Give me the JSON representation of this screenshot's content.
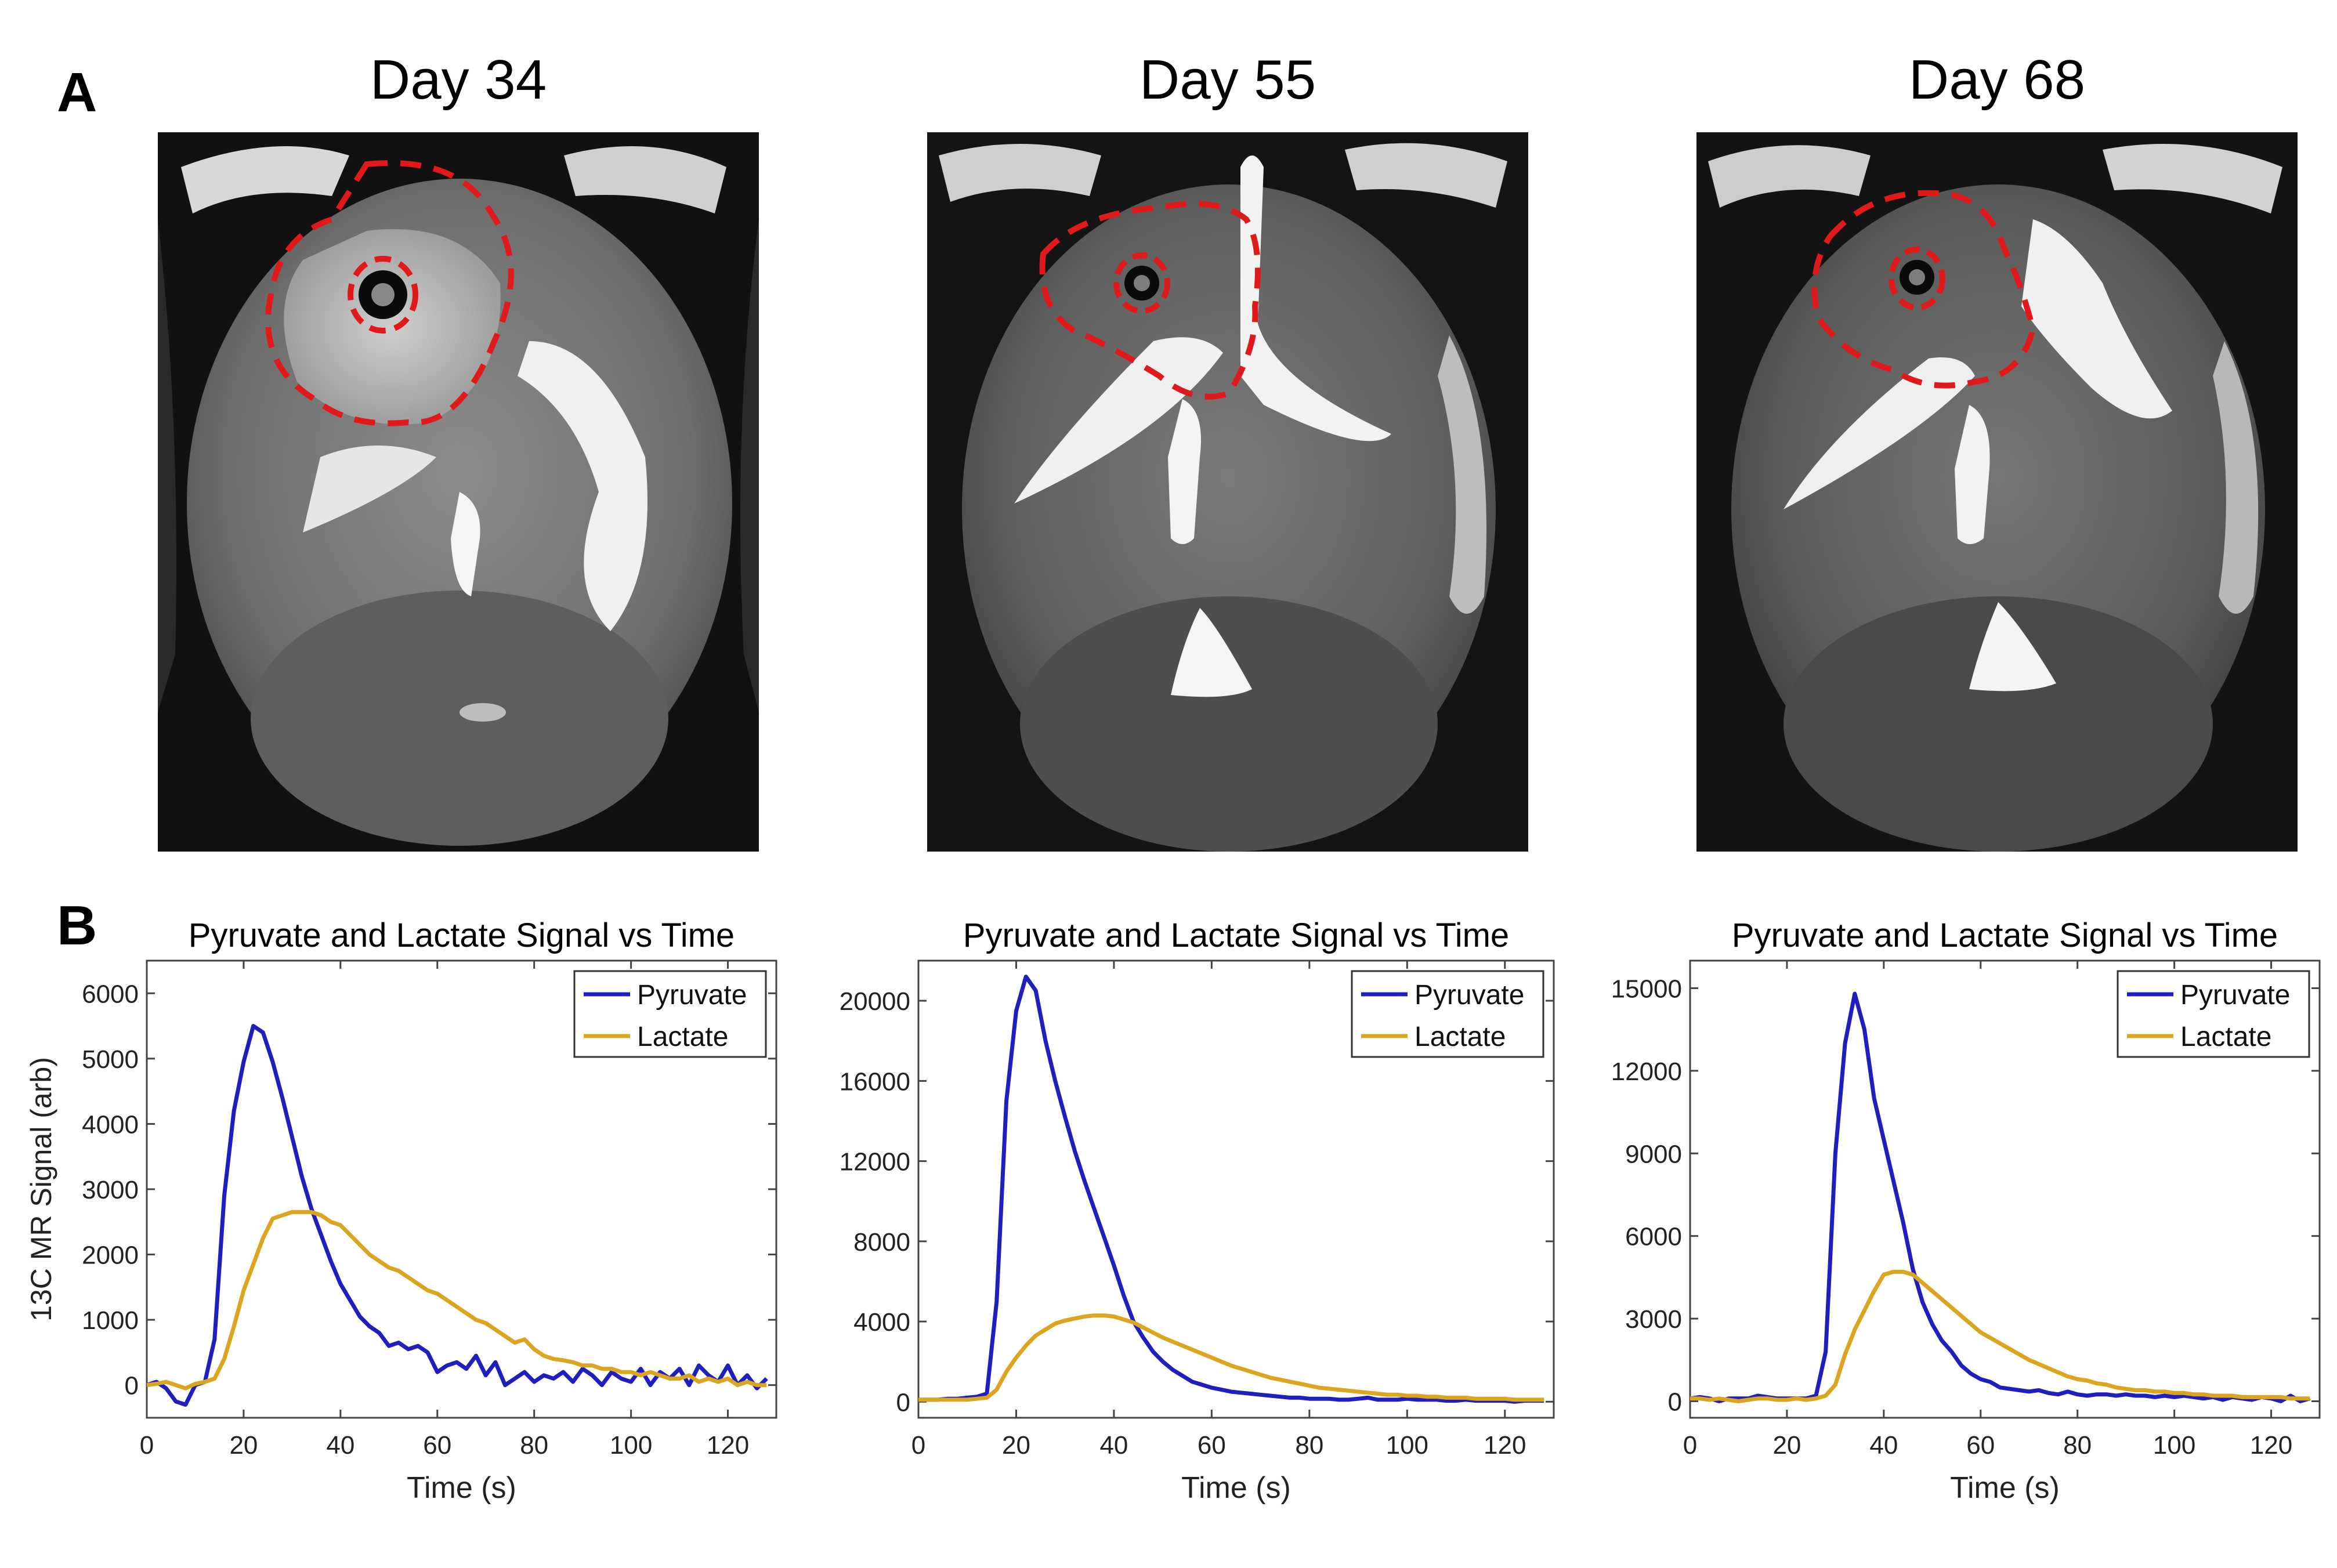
{
  "panels": {
    "a_label": "A",
    "b_label": "B"
  },
  "images": [
    {
      "title": "Day 34"
    },
    {
      "title": "Day 55"
    },
    {
      "title": "Day 68"
    }
  ],
  "colors": {
    "pyruvate": "#1f1fc0",
    "lactate": "#dba520",
    "roi": "#e01a1a"
  },
  "chart_data": [
    {
      "type": "line",
      "title": "Pyruvate and Lactate Signal vs Time",
      "xlabel": "Time (s)",
      "ylabel": "13C MR Signal (arb)",
      "xlim": [
        0,
        130
      ],
      "ylim": [
        -500,
        6500
      ],
      "xticks": [
        0,
        20,
        40,
        60,
        80,
        100,
        120
      ],
      "yticks": [
        0,
        1000,
        2000,
        3000,
        4000,
        5000,
        6000
      ],
      "legend_position": "top-right",
      "series": [
        {
          "name": "Pyruvate",
          "x": [
            0,
            2,
            4,
            6,
            8,
            10,
            12,
            14,
            16,
            18,
            20,
            22,
            24,
            26,
            28,
            30,
            32,
            34,
            36,
            38,
            40,
            42,
            44,
            46,
            48,
            50,
            52,
            54,
            56,
            58,
            60,
            62,
            64,
            66,
            68,
            70,
            72,
            74,
            76,
            78,
            80,
            82,
            84,
            86,
            88,
            90,
            92,
            94,
            96,
            98,
            100,
            102,
            104,
            106,
            108,
            110,
            112,
            114,
            116,
            118,
            120,
            122,
            124,
            126,
            128
          ],
          "y": [
            0,
            50,
            -50,
            -250,
            -300,
            0,
            50,
            700,
            2900,
            4200,
            4950,
            5500,
            5400,
            4950,
            4400,
            3800,
            3200,
            2700,
            2300,
            1900,
            1550,
            1300,
            1050,
            900,
            800,
            600,
            650,
            550,
            600,
            500,
            200,
            300,
            350,
            250,
            450,
            150,
            350,
            0,
            100,
            200,
            50,
            150,
            100,
            200,
            50,
            250,
            150,
            0,
            200,
            100,
            50,
            250,
            0,
            200,
            100,
            250,
            0,
            300,
            150,
            50,
            300,
            0,
            150,
            -50,
            100
          ]
        },
        {
          "name": "Lactate",
          "x": [
            0,
            2,
            4,
            6,
            8,
            10,
            12,
            14,
            16,
            18,
            20,
            22,
            24,
            26,
            28,
            30,
            32,
            34,
            36,
            38,
            40,
            42,
            44,
            46,
            48,
            50,
            52,
            54,
            56,
            58,
            60,
            62,
            64,
            66,
            68,
            70,
            72,
            74,
            76,
            78,
            80,
            82,
            84,
            86,
            88,
            90,
            92,
            94,
            96,
            98,
            100,
            102,
            104,
            106,
            108,
            110,
            112,
            114,
            116,
            118,
            120,
            122,
            124,
            126,
            128
          ],
          "y": [
            0,
            20,
            50,
            0,
            -50,
            20,
            50,
            100,
            400,
            900,
            1450,
            1850,
            2250,
            2550,
            2600,
            2650,
            2650,
            2650,
            2600,
            2500,
            2450,
            2300,
            2150,
            2000,
            1900,
            1800,
            1750,
            1650,
            1550,
            1450,
            1400,
            1300,
            1200,
            1100,
            1000,
            950,
            850,
            750,
            650,
            700,
            550,
            450,
            400,
            380,
            350,
            300,
            300,
            250,
            250,
            200,
            200,
            150,
            200,
            150,
            100,
            100,
            150,
            50,
            100,
            50,
            100,
            0,
            50,
            0,
            0
          ]
        }
      ]
    },
    {
      "type": "line",
      "title": "Pyruvate and Lactate Signal vs Time",
      "xlabel": "Time (s)",
      "ylabel": "",
      "xlim": [
        0,
        130
      ],
      "ylim": [
        -800,
        22000
      ],
      "xticks": [
        0,
        20,
        40,
        60,
        80,
        100,
        120
      ],
      "yticks": [
        0,
        4000,
        8000,
        12000,
        16000,
        20000
      ],
      "legend_position": "top-right",
      "series": [
        {
          "name": "Pyruvate",
          "x": [
            0,
            2,
            4,
            6,
            8,
            10,
            12,
            14,
            16,
            18,
            20,
            22,
            24,
            26,
            28,
            30,
            32,
            34,
            36,
            38,
            40,
            42,
            44,
            46,
            48,
            50,
            52,
            54,
            56,
            58,
            60,
            62,
            64,
            66,
            68,
            70,
            72,
            74,
            76,
            78,
            80,
            82,
            84,
            86,
            88,
            90,
            92,
            94,
            96,
            98,
            100,
            102,
            104,
            106,
            108,
            110,
            112,
            114,
            116,
            118,
            120,
            122,
            124,
            126,
            128
          ],
          "y": [
            100,
            100,
            100,
            150,
            150,
            200,
            250,
            400,
            5000,
            15000,
            19500,
            21200,
            20500,
            18000,
            16000,
            14200,
            12500,
            11000,
            9600,
            8200,
            6800,
            5300,
            4000,
            3200,
            2500,
            2000,
            1600,
            1300,
            1000,
            850,
            700,
            600,
            500,
            450,
            400,
            350,
            300,
            250,
            200,
            200,
            150,
            150,
            150,
            100,
            100,
            150,
            200,
            100,
            100,
            100,
            150,
            100,
            100,
            100,
            50,
            50,
            100,
            50,
            50,
            50,
            50,
            0,
            50,
            50,
            50
          ]
        },
        {
          "name": "Lactate",
          "x": [
            0,
            2,
            4,
            6,
            8,
            10,
            12,
            14,
            16,
            18,
            20,
            22,
            24,
            26,
            28,
            30,
            32,
            34,
            36,
            38,
            40,
            42,
            44,
            46,
            48,
            50,
            52,
            54,
            56,
            58,
            60,
            62,
            64,
            66,
            68,
            70,
            72,
            74,
            76,
            78,
            80,
            82,
            84,
            86,
            88,
            90,
            92,
            94,
            96,
            98,
            100,
            102,
            104,
            106,
            108,
            110,
            112,
            114,
            116,
            118,
            120,
            122,
            124,
            126,
            128
          ],
          "y": [
            100,
            100,
            100,
            100,
            100,
            100,
            150,
            200,
            600,
            1500,
            2200,
            2800,
            3300,
            3600,
            3900,
            4050,
            4150,
            4250,
            4300,
            4300,
            4250,
            4100,
            3950,
            3700,
            3450,
            3200,
            3000,
            2800,
            2600,
            2400,
            2200,
            2000,
            1800,
            1650,
            1500,
            1350,
            1200,
            1100,
            1000,
            900,
            800,
            700,
            650,
            600,
            550,
            500,
            450,
            400,
            350,
            350,
            300,
            300,
            250,
            250,
            200,
            200,
            200,
            150,
            150,
            150,
            150,
            100,
            100,
            100,
            100
          ]
        }
      ]
    },
    {
      "type": "line",
      "title": "Pyruvate and Lactate Signal vs Time",
      "xlabel": "Time (s)",
      "ylabel": "",
      "xlim": [
        0,
        130
      ],
      "ylim": [
        -600,
        16000
      ],
      "xticks": [
        0,
        20,
        40,
        60,
        80,
        100,
        120
      ],
      "yticks": [
        0,
        3000,
        6000,
        9000,
        12000,
        15000
      ],
      "legend_position": "top-right",
      "series": [
        {
          "name": "Pyruvate",
          "x": [
            0,
            2,
            4,
            6,
            8,
            10,
            12,
            14,
            16,
            18,
            20,
            22,
            24,
            26,
            28,
            30,
            32,
            34,
            36,
            38,
            40,
            42,
            44,
            46,
            48,
            50,
            52,
            54,
            56,
            58,
            60,
            62,
            64,
            66,
            68,
            70,
            72,
            74,
            76,
            78,
            80,
            82,
            84,
            86,
            88,
            90,
            92,
            94,
            96,
            98,
            100,
            102,
            104,
            106,
            108,
            110,
            112,
            114,
            116,
            118,
            120,
            122,
            124,
            126,
            128
          ],
          "y": [
            100,
            150,
            100,
            0,
            100,
            100,
            100,
            200,
            150,
            100,
            100,
            100,
            100,
            200,
            1800,
            9000,
            13000,
            14800,
            13500,
            11000,
            9500,
            8000,
            6500,
            4800,
            3600,
            2800,
            2200,
            1800,
            1300,
            1000,
            800,
            700,
            500,
            450,
            400,
            350,
            400,
            300,
            250,
            350,
            250,
            200,
            250,
            250,
            200,
            250,
            200,
            200,
            150,
            200,
            150,
            200,
            150,
            100,
            150,
            50,
            150,
            100,
            50,
            150,
            100,
            0,
            200,
            0,
            100
          ]
        },
        {
          "name": "Lactate",
          "x": [
            0,
            2,
            4,
            6,
            8,
            10,
            12,
            14,
            16,
            18,
            20,
            22,
            24,
            26,
            28,
            30,
            32,
            34,
            36,
            38,
            40,
            42,
            44,
            46,
            48,
            50,
            52,
            54,
            56,
            58,
            60,
            62,
            64,
            66,
            68,
            70,
            72,
            74,
            76,
            78,
            80,
            82,
            84,
            86,
            88,
            90,
            92,
            94,
            96,
            98,
            100,
            102,
            104,
            106,
            108,
            110,
            112,
            114,
            116,
            118,
            120,
            122,
            124,
            126,
            128
          ],
          "y": [
            100,
            100,
            50,
            100,
            50,
            0,
            50,
            100,
            100,
            50,
            50,
            100,
            50,
            100,
            200,
            600,
            1700,
            2600,
            3300,
            4000,
            4600,
            4700,
            4700,
            4600,
            4300,
            4000,
            3700,
            3400,
            3100,
            2800,
            2500,
            2300,
            2100,
            1900,
            1700,
            1500,
            1350,
            1200,
            1050,
            900,
            800,
            750,
            650,
            600,
            500,
            450,
            400,
            400,
            350,
            350,
            300,
            300,
            250,
            250,
            200,
            200,
            200,
            150,
            150,
            150,
            150,
            150,
            100,
            100,
            100
          ]
        }
      ]
    }
  ]
}
